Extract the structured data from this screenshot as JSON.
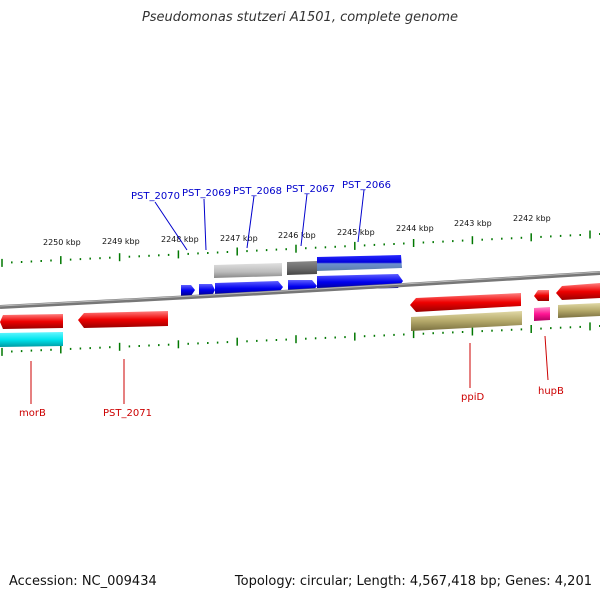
{
  "title": "Pseudomonas stutzeri A1501, complete genome",
  "footer": {
    "accession": "Accession: NC_009434",
    "summary": "Topology: circular; Length: 4,567,418 bp; Genes: 4,201"
  },
  "kbp_labels": [
    "2250 kbp",
    "2249 kbp",
    "2248 kbp",
    "2247 kbp",
    "2246 kbp",
    "2245 kbp",
    "2244 kbp",
    "2243 kbp",
    "2242 kbp"
  ],
  "gene_labels_top": [
    "PST_2070",
    "PST_2069",
    "PST_2068",
    "PST_2067",
    "PST_2066"
  ],
  "gene_labels_bottom": [
    "morB",
    "PST_2071",
    "ppiD",
    "hupB"
  ],
  "colors": {
    "blue_gene": "#0000ee",
    "red_gene": "#ee0000",
    "cyan_gene": "#00e5ee",
    "olive_gene": "#b5a96a",
    "magenta_gene": "#ff1493",
    "tick": "#007700",
    "backbone": "#777777"
  }
}
